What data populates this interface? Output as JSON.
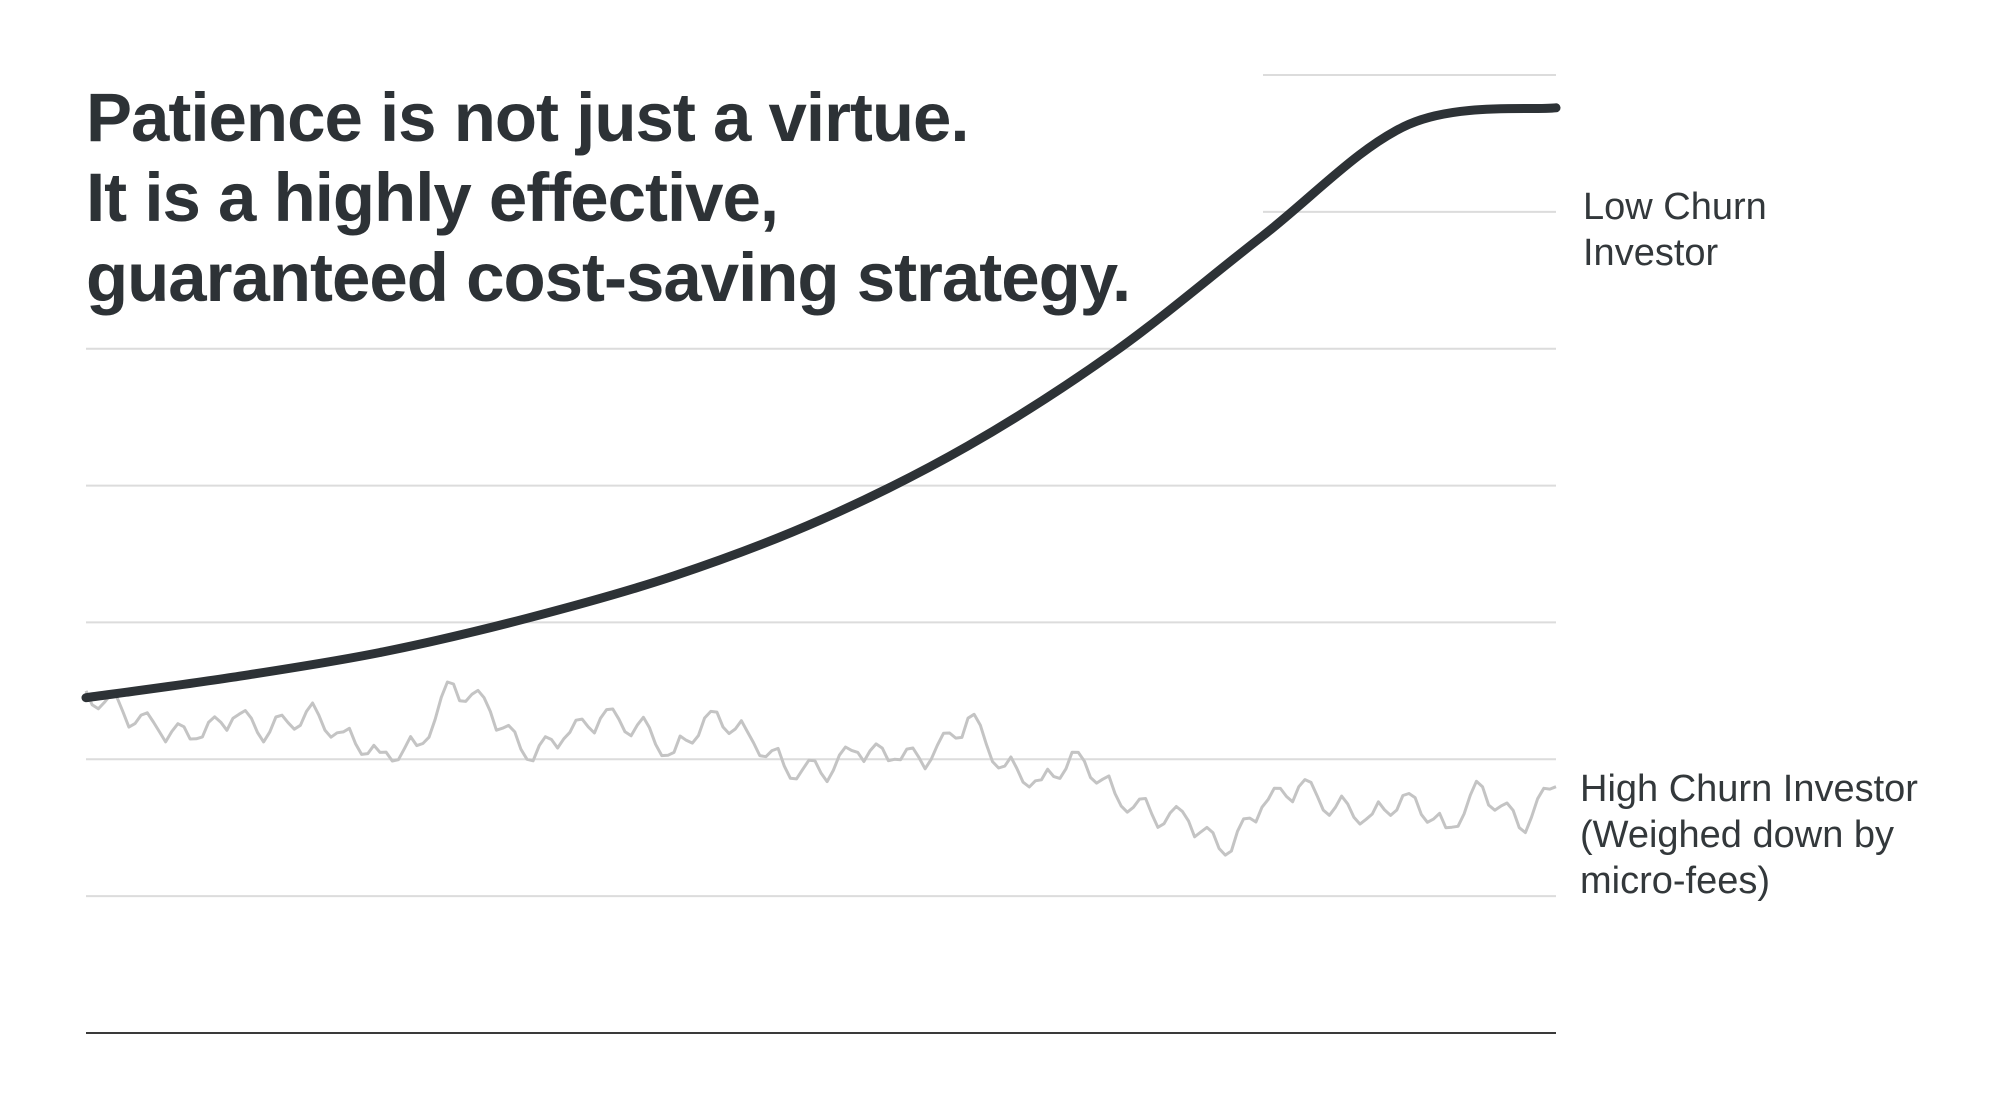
{
  "headline": {
    "line1": "Patience is not just a virtue.",
    "line2": "It is a highly effective,",
    "line3": "guaranteed cost-saving strategy."
  },
  "labels": {
    "low_churn": [
      "Low Churn",
      "Investor"
    ],
    "high_churn": [
      "High Churn Investor",
      "(Weighed down by",
      "micro-fees)"
    ]
  },
  "colors": {
    "low_churn_line": "#2d3236",
    "high_churn_line": "#c4c4c4",
    "gridline": "#dcdcdc",
    "baseline": "#3a3a3a"
  },
  "chart_data": {
    "type": "line",
    "title": "",
    "xlabel": "",
    "ylabel": "",
    "grid": true,
    "xlim": [
      0,
      100
    ],
    "ylim": [
      0,
      7
    ],
    "gridlines": [
      1,
      2,
      3,
      4,
      5,
      6,
      7
    ],
    "series": [
      {
        "name": "Low Churn Investor",
        "x": [
          0,
          10,
          20,
          30,
          40,
          50,
          60,
          70,
          80,
          90,
          100
        ],
        "values": [
          2.45,
          2.6,
          2.78,
          3.03,
          3.34,
          3.75,
          4.29,
          4.98,
          5.82,
          6.64,
          6.76
        ]
      },
      {
        "name": "High Churn Investor (Weighed down by micro-fees)",
        "x": [
          0,
          2.5,
          5,
          7.5,
          10,
          12.5,
          15,
          17.5,
          20,
          22.5,
          25,
          27.5,
          30,
          32.5,
          35,
          37.5,
          40,
          42.5,
          45,
          47.5,
          50,
          52.5,
          55,
          57.5,
          60,
          62.5,
          65,
          67.5,
          70,
          72.5,
          75,
          77.5,
          80,
          82.5,
          85,
          87.5,
          90,
          92.5,
          95,
          97.5,
          100
        ],
        "values": [
          2.5,
          2.35,
          2.2,
          2.15,
          2.3,
          2.2,
          2.35,
          2.2,
          2.05,
          2.1,
          2.55,
          2.35,
          2.0,
          2.15,
          2.3,
          2.25,
          2.05,
          2.35,
          2.2,
          1.95,
          1.9,
          2.05,
          2.0,
          2.0,
          2.3,
          1.95,
          1.85,
          2.05,
          1.75,
          1.6,
          1.55,
          1.3,
          1.65,
          1.8,
          1.65,
          1.6,
          1.75,
          1.5,
          1.8,
          1.5,
          1.8
        ]
      }
    ]
  }
}
